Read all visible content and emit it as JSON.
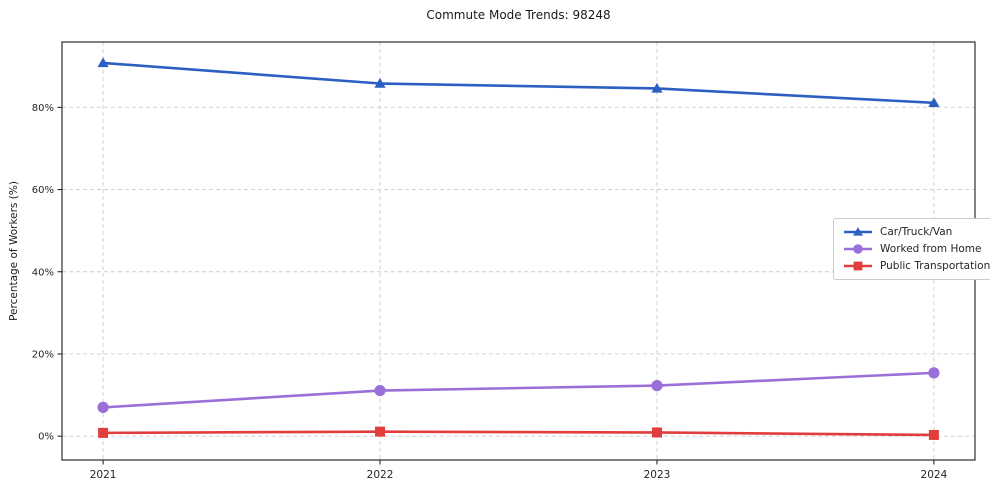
{
  "chart_data": {
    "type": "line",
    "title": "Commute Mode Trends: 98248",
    "xlabel": "",
    "ylabel": "Percentage of Workers (%)",
    "x": [
      2021,
      2022,
      2023,
      2024
    ],
    "x_tick_labels": [
      "2021",
      "2022",
      "2023",
      "2024"
    ],
    "y_ticks": [
      0,
      20,
      40,
      60,
      80
    ],
    "y_tick_labels": [
      "0%",
      "20%",
      "40%",
      "60%",
      "80%"
    ],
    "ylim": [
      -5.8,
      95.9
    ],
    "grid": "dashed-both-axes",
    "legend_position": "center-right",
    "series": [
      {
        "name": "Car/Truck/Van",
        "color": "#2c5fc2",
        "marker": "triangle",
        "values": [
          90.8,
          85.8,
          84.6,
          81.1
        ]
      },
      {
        "name": "Worked from Home",
        "color": "#9a70d8",
        "marker": "circle",
        "values": [
          7.0,
          11.1,
          12.3,
          15.4
        ]
      },
      {
        "name": "Public Transportation",
        "color": "#e23d3d",
        "marker": "square",
        "values": [
          0.8,
          1.1,
          0.9,
          0.3
        ]
      }
    ],
    "colors": {
      "grid": "#cccccc",
      "spine": "#1a1a1a",
      "tick_text": "#262626",
      "background": "#ffffff"
    }
  }
}
